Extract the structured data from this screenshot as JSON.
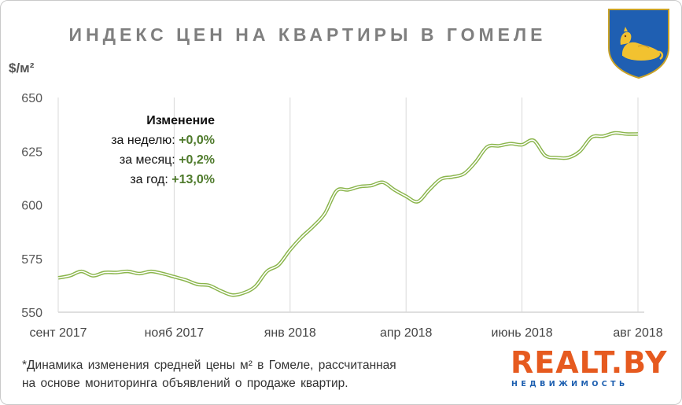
{
  "title": "ИНДЕКС ЦЕН НА КВАРТИРЫ В ГОМЕЛЕ",
  "y_unit": "$/м²",
  "change": {
    "header": "Изменение",
    "week_label": "за неделю:",
    "week_value": "+0,0%",
    "month_label": "за месяц:",
    "month_value": "+0,2%",
    "year_label": "за год:",
    "year_value": "+13,0%"
  },
  "footnote": {
    "line1": "*Динамика изменения средней цены м² в Гомеле, рассчитанная",
    "line2": "на основе мониторинга объявлений о продаже квартир."
  },
  "logo": {
    "main": "REALT.BY",
    "sub": "НЕДВИЖИМОСТЬ"
  },
  "colors": {
    "line": "#8ab54b",
    "line_inner": "#ffffff",
    "grid": "#d9d9d9",
    "value_green": "#4e7a2b",
    "logo_orange": "#e65a1f",
    "logo_blue": "#1d5fb0"
  },
  "chart_data": {
    "type": "line",
    "title": "ИНДЕКС ЦЕН НА КВАРТИРЫ В ГОМЕЛЕ",
    "ylabel": "$/м²",
    "xlabel": "",
    "ylim": [
      550,
      650
    ],
    "yticks": [
      550,
      575,
      600,
      625,
      650
    ],
    "xlim": [
      0,
      50
    ],
    "xticks": [
      {
        "x": 0,
        "label": "сент 2017"
      },
      {
        "x": 10,
        "label": "нояб 2017"
      },
      {
        "x": 20,
        "label": "янв 2018"
      },
      {
        "x": 30,
        "label": "апр 2018"
      },
      {
        "x": 40,
        "label": "июнь 2018"
      },
      {
        "x": 50,
        "label": "авг 2018"
      }
    ],
    "grid": "vertical",
    "series": [
      {
        "points": [
          [
            0,
            566
          ],
          [
            1,
            567
          ],
          [
            2,
            569
          ],
          [
            3,
            567
          ],
          [
            4,
            568.5
          ],
          [
            5,
            568.5
          ],
          [
            6,
            569
          ],
          [
            7,
            568
          ],
          [
            8,
            569
          ],
          [
            9,
            568
          ],
          [
            10,
            566.5
          ],
          [
            11,
            565
          ],
          [
            12,
            563
          ],
          [
            13,
            562.5
          ],
          [
            14,
            560
          ],
          [
            15,
            558
          ],
          [
            16,
            559
          ],
          [
            17,
            562
          ],
          [
            18,
            569
          ],
          [
            19,
            572
          ],
          [
            20,
            579
          ],
          [
            21,
            585
          ],
          [
            22,
            590
          ],
          [
            23,
            596
          ],
          [
            24,
            606.5
          ],
          [
            25,
            607
          ],
          [
            26,
            608.5
          ],
          [
            27,
            609
          ],
          [
            28,
            610.5
          ],
          [
            29,
            607
          ],
          [
            30,
            604
          ],
          [
            31,
            601.5
          ],
          [
            32,
            607
          ],
          [
            33,
            612
          ],
          [
            34,
            613
          ],
          [
            35,
            614.5
          ],
          [
            36,
            620
          ],
          [
            37,
            627
          ],
          [
            38,
            627.5
          ],
          [
            39,
            628.5
          ],
          [
            40,
            628
          ],
          [
            41,
            630
          ],
          [
            42,
            623
          ],
          [
            43,
            622
          ],
          [
            44,
            622
          ],
          [
            45,
            625
          ],
          [
            46,
            631.5
          ],
          [
            47,
            632
          ],
          [
            48,
            633.5
          ],
          [
            49,
            633
          ],
          [
            50,
            633
          ]
        ]
      }
    ]
  }
}
